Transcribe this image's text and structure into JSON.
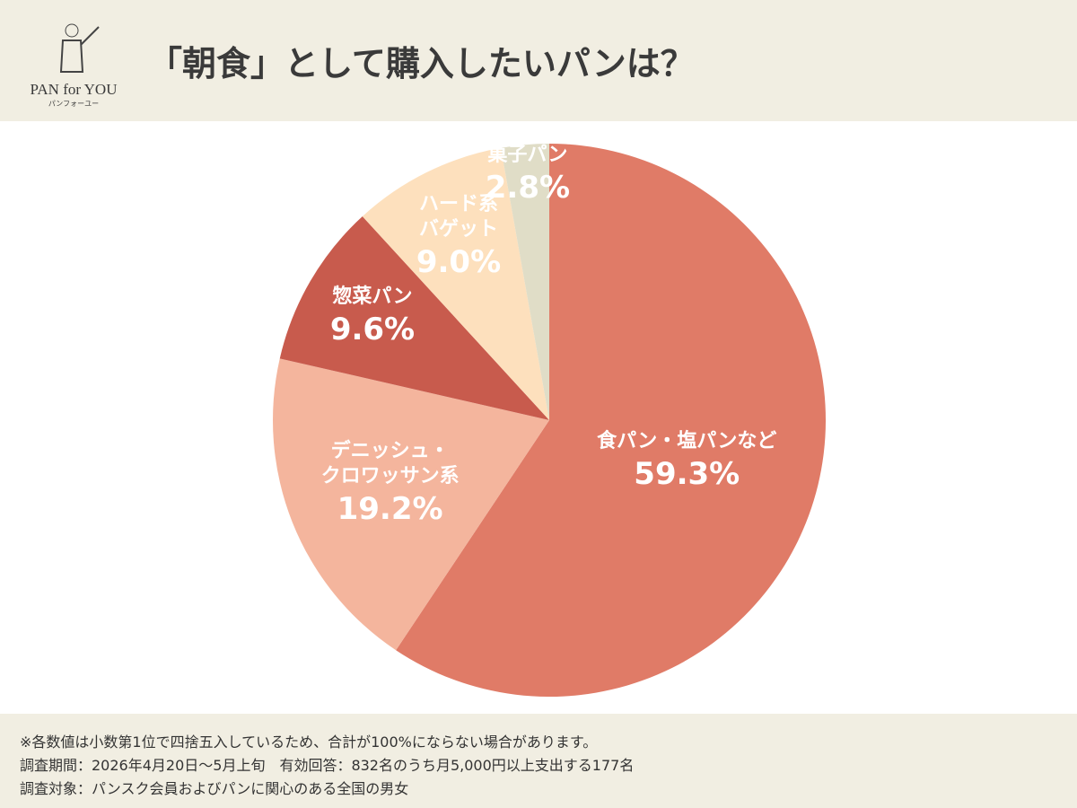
{
  "logo": {
    "brand": "PAN for YOU",
    "sub": "パンフォーユー"
  },
  "chart_data": {
    "type": "pie",
    "title": "「朝食」として購入したいパンは？",
    "categories": [
      "食パン・塩パンなど",
      "デニッシュ・\nクロワッサン系",
      "惣菜パン",
      "ハード系\nバゲット",
      "菓子パン"
    ],
    "values": [
      59.3,
      19.2,
      9.6,
      9.0,
      2.8
    ],
    "value_labels": [
      "59.3%",
      "19.2%",
      "9.6%",
      "9.0%",
      "2.8%"
    ],
    "colors": [
      "#e07b67",
      "#f4b59d",
      "#c85b4d",
      "#fde0bd",
      "#e0ddc7"
    ]
  },
  "notes": [
    "※各数値は小数第1位で四捨五入しているため、合計が100%にならない場合があります。",
    "調査期間：2026年4月20日～5月上旬　有効回答：832名のうち月5,000円以上支出する177名",
    "調査対象：パンスク会員およびパンに関心のある全国の男女"
  ]
}
